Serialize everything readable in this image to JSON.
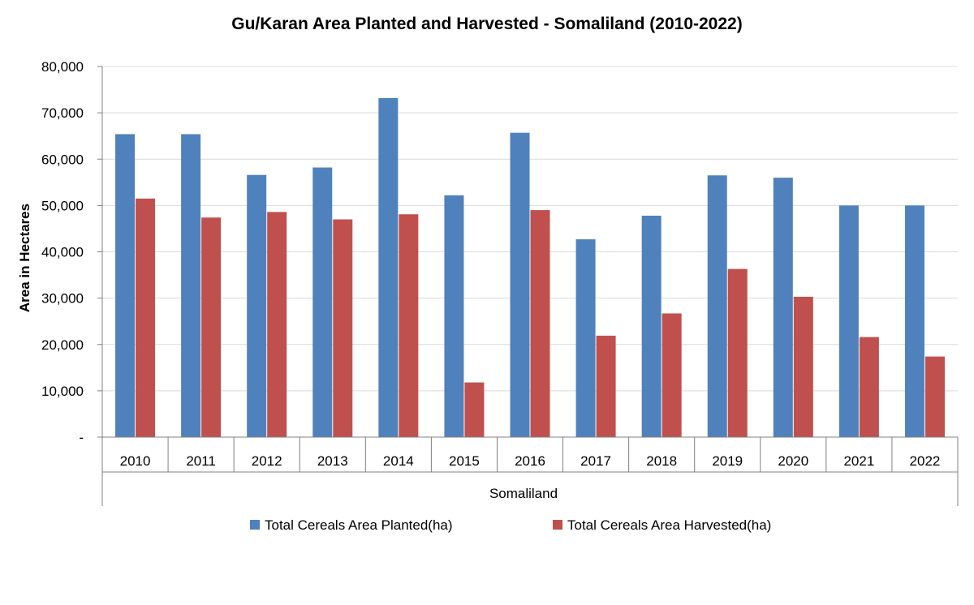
{
  "chart_data": {
    "type": "bar",
    "title": "Gu/Karan Area Planted and Harvested - Somaliland (2010-2022)",
    "ylabel": "Area in Hectares",
    "group_label": "Somaliland",
    "categories": [
      "2010",
      "2011",
      "2012",
      "2013",
      "2014",
      "2015",
      "2016",
      "2017",
      "2018",
      "2019",
      "2020",
      "2021",
      "2022"
    ],
    "series": [
      {
        "name": "Total Cereals Area Planted(ha)",
        "color": "#4F81BD",
        "values": [
          65400,
          65400,
          56600,
          58200,
          73200,
          52200,
          65700,
          42700,
          47800,
          56500,
          56000,
          50000,
          50000
        ]
      },
      {
        "name": "Total Cereals Area Harvested(ha)",
        "color": "#C0504D",
        "values": [
          51500,
          47400,
          48600,
          47000,
          48100,
          11800,
          49000,
          21900,
          26700,
          36300,
          30300,
          21600,
          17400
        ]
      }
    ],
    "ylim": [
      0,
      80000
    ],
    "yticks": [
      0,
      10000,
      20000,
      30000,
      40000,
      50000,
      60000,
      70000,
      80000
    ],
    "ytick_labels": [
      "-",
      "10,000",
      "20,000",
      "30,000",
      "40,000",
      "50,000",
      "60,000",
      "70,000",
      "80,000"
    ],
    "grid": true,
    "legend_position": "bottom"
  }
}
